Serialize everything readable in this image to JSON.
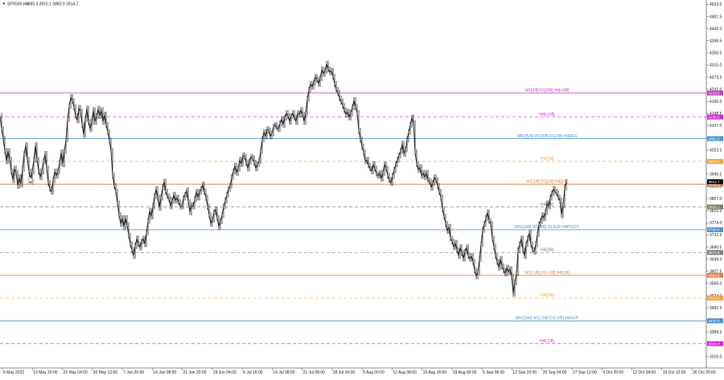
{
  "chart_data": {
    "type": "candlestick",
    "symbol": "SPX500,H4",
    "ohlc_header": "3885.3 3915.1 3883.9 3914.7",
    "ylim": [
      3276,
      4538
    ],
    "y_ticks": [
      4523.0,
      4481.5,
      4440.0,
      4398.5,
      4356.5,
      4315.0,
      4273.5,
      4232.0,
      4190.0,
      4148.5,
      4107.0,
      4065.5,
      4023.5,
      3982.0,
      3940.5,
      3899.0,
      3857.0,
      3815.5,
      3774.0,
      3732.5,
      3690.5,
      3649.0,
      3607.5,
      3566.0,
      3524.0,
      3482.5,
      3441.0,
      3399.5,
      3357.5,
      3316.0
    ],
    "x_ticks": [
      "6 May 2022",
      "13 May 20:00",
      "23 May 04:00",
      "30 May 12:00",
      "7 Jun 20:00",
      "14 Jun 08:00",
      "21 Jun 20:00",
      "29 Jun 04:00",
      "6 Jul 16:00",
      "14 Jul 08:00",
      "21 Jul 08:00",
      "28 Jul 16:00",
      "5 Aug 00:00",
      "12 Aug 08:00",
      "19 Aug 16:00",
      "29 Aug 00:00",
      "5 Sep 08:00",
      "12 Sep 20:00",
      "20 Sep 04:00",
      "27 Sep 12:00",
      "4 Oct 20:00",
      "12 Oct 04:00",
      "19 Oct 12:00",
      "26 Oct 20:00"
    ],
    "price_path": [
      [
        0,
        4140
      ],
      [
        2,
        4095
      ],
      [
        4,
        4062
      ],
      [
        6,
        4020
      ],
      [
        8,
        3985
      ],
      [
        10,
        4020
      ],
      [
        12,
        3990
      ],
      [
        14,
        3950
      ],
      [
        16,
        3920
      ],
      [
        18,
        3960
      ],
      [
        20,
        3945
      ],
      [
        22,
        3900
      ],
      [
        24,
        3930
      ],
      [
        26,
        3905
      ],
      [
        28,
        3960
      ],
      [
        30,
        4010
      ],
      [
        32,
        4040
      ],
      [
        34,
        3990
      ],
      [
        36,
        3950
      ],
      [
        38,
        3920
      ],
      [
        40,
        3950
      ],
      [
        42,
        3990
      ],
      [
        44,
        4040
      ],
      [
        46,
        3990
      ],
      [
        48,
        3950
      ],
      [
        50,
        3930
      ],
      [
        52,
        3950
      ],
      [
        54,
        3985
      ],
      [
        56,
        4010
      ],
      [
        58,
        3960
      ],
      [
        60,
        3910
      ],
      [
        62,
        3890
      ],
      [
        64,
        3880
      ],
      [
        66,
        3920
      ],
      [
        68,
        3950
      ],
      [
        70,
        3935
      ],
      [
        72,
        3950
      ],
      [
        74,
        3980
      ],
      [
        76,
        4015
      ],
      [
        78,
        3975
      ],
      [
        80,
        4020
      ],
      [
        82,
        4060
      ],
      [
        84,
        4130
      ],
      [
        86,
        4175
      ],
      [
        88,
        4205
      ],
      [
        90,
        4192
      ],
      [
        92,
        4170
      ],
      [
        94,
        4140
      ],
      [
        96,
        4125
      ],
      [
        98,
        4168
      ],
      [
        100,
        4155
      ],
      [
        102,
        4110
      ],
      [
        104,
        4075
      ],
      [
        106,
        4130
      ],
      [
        108,
        4165
      ],
      [
        110,
        4120
      ],
      [
        112,
        4095
      ],
      [
        114,
        4120
      ],
      [
        116,
        4160
      ],
      [
        118,
        4120
      ],
      [
        120,
        4140
      ],
      [
        122,
        4165
      ],
      [
        124,
        4140
      ],
      [
        126,
        4160
      ],
      [
        128,
        4120
      ],
      [
        130,
        4145
      ],
      [
        132,
        4110
      ],
      [
        134,
        4085
      ],
      [
        136,
        4055
      ],
      [
        138,
        4020
      ],
      [
        140,
        3935
      ],
      [
        142,
        3900
      ],
      [
        144,
        3880
      ],
      [
        146,
        3840
      ],
      [
        148,
        3800
      ],
      [
        150,
        3770
      ],
      [
        152,
        3790
      ],
      [
        154,
        3760
      ],
      [
        156,
        3790
      ],
      [
        158,
        3765
      ],
      [
        160,
        3730
      ],
      [
        162,
        3700
      ],
      [
        164,
        3680
      ],
      [
        166,
        3660
      ],
      [
        168,
        3695
      ],
      [
        170,
        3720
      ],
      [
        172,
        3700
      ],
      [
        174,
        3690
      ],
      [
        176,
        3710
      ],
      [
        178,
        3720
      ],
      [
        180,
        3700
      ],
      [
        182,
        3740
      ],
      [
        184,
        3780
      ],
      [
        186,
        3815
      ],
      [
        188,
        3795
      ],
      [
        190,
        3830
      ],
      [
        192,
        3865
      ],
      [
        194,
        3890
      ],
      [
        196,
        3860
      ],
      [
        198,
        3825
      ],
      [
        200,
        3860
      ],
      [
        202,
        3895
      ],
      [
        204,
        3915
      ],
      [
        206,
        3880
      ],
      [
        208,
        3865
      ],
      [
        210,
        3855
      ],
      [
        212,
        3830
      ],
      [
        214,
        3850
      ],
      [
        216,
        3870
      ],
      [
        218,
        3850
      ],
      [
        220,
        3860
      ],
      [
        222,
        3845
      ],
      [
        224,
        3830
      ],
      [
        226,
        3830
      ],
      [
        228,
        3860
      ],
      [
        230,
        3870
      ],
      [
        232,
        3885
      ],
      [
        234,
        3845
      ],
      [
        236,
        3810
      ],
      [
        238,
        3835
      ],
      [
        240,
        3830
      ],
      [
        242,
        3855
      ],
      [
        244,
        3880
      ],
      [
        246,
        3860
      ],
      [
        248,
        3880
      ],
      [
        250,
        3890
      ],
      [
        252,
        3905
      ],
      [
        254,
        3880
      ],
      [
        256,
        3860
      ],
      [
        258,
        3830
      ],
      [
        260,
        3800
      ],
      [
        262,
        3770
      ],
      [
        264,
        3785
      ],
      [
        266,
        3810
      ],
      [
        268,
        3820
      ],
      [
        270,
        3790
      ],
      [
        272,
        3760
      ],
      [
        274,
        3780
      ],
      [
        276,
        3800
      ],
      [
        278,
        3830
      ],
      [
        280,
        3850
      ],
      [
        282,
        3870
      ],
      [
        284,
        3890
      ],
      [
        286,
        3900
      ],
      [
        288,
        3930
      ],
      [
        290,
        3950
      ],
      [
        292,
        3970
      ],
      [
        294,
        3945
      ],
      [
        296,
        3960
      ],
      [
        298,
        3990
      ],
      [
        300,
        3975
      ],
      [
        302,
        4005
      ],
      [
        304,
        4000
      ],
      [
        306,
        3980
      ],
      [
        308,
        3960
      ],
      [
        310,
        3985
      ],
      [
        312,
        4000
      ],
      [
        314,
        3995
      ],
      [
        316,
        3980
      ],
      [
        318,
        3960
      ],
      [
        320,
        3975
      ],
      [
        322,
        3985
      ],
      [
        324,
        4020
      ],
      [
        326,
        4060
      ],
      [
        328,
        4085
      ],
      [
        330,
        4070
      ],
      [
        332,
        4095
      ],
      [
        334,
        4090
      ],
      [
        336,
        4070
      ],
      [
        338,
        4080
      ],
      [
        340,
        4105
      ],
      [
        342,
        4110
      ],
      [
        344,
        4100
      ],
      [
        346,
        4095
      ],
      [
        348,
        4115
      ],
      [
        350,
        4130
      ],
      [
        352,
        4110
      ],
      [
        354,
        4135
      ],
      [
        356,
        4150
      ],
      [
        358,
        4140
      ],
      [
        360,
        4120
      ],
      [
        362,
        4140
      ],
      [
        364,
        4150
      ],
      [
        366,
        4135
      ],
      [
        368,
        4120
      ],
      [
        370,
        4150
      ],
      [
        372,
        4145
      ],
      [
        374,
        4160
      ],
      [
        376,
        4145
      ],
      [
        378,
        4120
      ],
      [
        380,
        4150
      ],
      [
        382,
        4200
      ],
      [
        384,
        4230
      ],
      [
        386,
        4250
      ],
      [
        388,
        4240
      ],
      [
        390,
        4255
      ],
      [
        392,
        4275
      ],
      [
        394,
        4265
      ],
      [
        396,
        4250
      ],
      [
        398,
        4270
      ],
      [
        400,
        4300
      ],
      [
        402,
        4285
      ],
      [
        404,
        4295
      ],
      [
        406,
        4320
      ],
      [
        408,
        4300
      ],
      [
        410,
        4290
      ],
      [
        412,
        4295
      ],
      [
        414,
        4275
      ],
      [
        416,
        4250
      ],
      [
        418,
        4230
      ],
      [
        420,
        4220
      ],
      [
        422,
        4200
      ],
      [
        424,
        4190
      ],
      [
        426,
        4175
      ],
      [
        428,
        4160
      ],
      [
        430,
        4145
      ],
      [
        432,
        4155
      ],
      [
        434,
        4135
      ],
      [
        436,
        4150
      ],
      [
        438,
        4170
      ],
      [
        440,
        4195
      ],
      [
        442,
        4170
      ],
      [
        444,
        4150
      ],
      [
        446,
        4090
      ],
      [
        448,
        4060
      ],
      [
        450,
        4035
      ],
      [
        452,
        4015
      ],
      [
        454,
        3985
      ],
      [
        456,
        3990
      ],
      [
        458,
        3970
      ],
      [
        460,
        3960
      ],
      [
        462,
        3950
      ],
      [
        464,
        3975
      ],
      [
        466,
        3960
      ],
      [
        468,
        3940
      ],
      [
        470,
        3935
      ],
      [
        472,
        3945
      ],
      [
        474,
        3925
      ],
      [
        476,
        3945
      ],
      [
        478,
        3975
      ],
      [
        480,
        3960
      ],
      [
        482,
        3935
      ],
      [
        484,
        3920
      ],
      [
        486,
        3910
      ],
      [
        488,
        3935
      ],
      [
        490,
        3955
      ],
      [
        492,
        3975
      ],
      [
        494,
        3990
      ],
      [
        496,
        4005
      ],
      [
        498,
        4020
      ],
      [
        500,
        4045
      ],
      [
        502,
        4010
      ],
      [
        504,
        4025
      ],
      [
        506,
        4060
      ],
      [
        508,
        4085
      ],
      [
        510,
        4110
      ],
      [
        512,
        4135
      ],
      [
        514,
        4115
      ],
      [
        516,
        4015
      ],
      [
        518,
        3975
      ],
      [
        520,
        3955
      ],
      [
        522,
        3965
      ],
      [
        524,
        3935
      ],
      [
        526,
        3945
      ],
      [
        528,
        3930
      ],
      [
        530,
        3945
      ],
      [
        532,
        3920
      ],
      [
        534,
        3915
      ],
      [
        536,
        3895
      ],
      [
        538,
        3910
      ],
      [
        540,
        3930
      ],
      [
        542,
        3920
      ],
      [
        544,
        3900
      ],
      [
        546,
        3880
      ],
      [
        548,
        3860
      ],
      [
        550,
        3820
      ],
      [
        552,
        3795
      ],
      [
        554,
        3770
      ],
      [
        556,
        3745
      ],
      [
        558,
        3760
      ],
      [
        560,
        3720
      ],
      [
        562,
        3710
      ],
      [
        564,
        3690
      ],
      [
        566,
        3705
      ],
      [
        568,
        3680
      ],
      [
        570,
        3660
      ],
      [
        572,
        3690
      ],
      [
        574,
        3670
      ],
      [
        576,
        3650
      ],
      [
        578,
        3675
      ],
      [
        580,
        3690
      ],
      [
        582,
        3660
      ],
      [
        584,
        3650
      ],
      [
        586,
        3660
      ],
      [
        588,
        3640
      ],
      [
        590,
        3610
      ],
      [
        592,
        3590
      ],
      [
        594,
        3605
      ],
      [
        596,
        3650
      ],
      [
        598,
        3700
      ],
      [
        600,
        3750
      ],
      [
        602,
        3770
      ],
      [
        604,
        3790
      ],
      [
        606,
        3810
      ],
      [
        608,
        3780
      ],
      [
        610,
        3770
      ],
      [
        612,
        3720
      ],
      [
        614,
        3690
      ],
      [
        616,
        3660
      ],
      [
        618,
        3640
      ],
      [
        620,
        3620
      ],
      [
        622,
        3650
      ],
      [
        624,
        3625
      ],
      [
        626,
        3610
      ],
      [
        628,
        3600
      ],
      [
        630,
        3620
      ],
      [
        632,
        3605
      ],
      [
        634,
        3615
      ],
      [
        636,
        3590
      ],
      [
        638,
        3530
      ],
      [
        640,
        3570
      ],
      [
        642,
        3600
      ],
      [
        644,
        3680
      ],
      [
        646,
        3700
      ],
      [
        648,
        3720
      ],
      [
        650,
        3680
      ],
      [
        652,
        3660
      ],
      [
        654,
        3700
      ],
      [
        656,
        3720
      ],
      [
        658,
        3740
      ],
      [
        660,
        3700
      ],
      [
        662,
        3680
      ],
      [
        664,
        3675
      ],
      [
        666,
        3700
      ],
      [
        668,
        3735
      ],
      [
        670,
        3770
      ],
      [
        672,
        3780
      ],
      [
        674,
        3800
      ],
      [
        676,
        3790
      ],
      [
        678,
        3810
      ],
      [
        680,
        3840
      ],
      [
        682,
        3830
      ],
      [
        684,
        3860
      ],
      [
        686,
        3875
      ],
      [
        688,
        3890
      ],
      [
        690,
        3880
      ],
      [
        692,
        3875
      ],
      [
        694,
        3860
      ],
      [
        696,
        3850
      ],
      [
        698,
        3800
      ],
      [
        700,
        3835
      ],
      [
        702,
        3895
      ],
      [
        704,
        3914.7
      ]
    ],
    "price_level_labels": [
      "4523.0"
    ],
    "levels": [
      {
        "label": "W1[3/8] D1[3/8] H4[+2/8]",
        "price": 4219.0,
        "tag": "4219.0",
        "color": "#c040c0",
        "style": "solid"
      },
      {
        "label": "H4[+1/8]",
        "price": 4136.5,
        "tag": "4136.5",
        "color": "#e020e0",
        "style": "dashed"
      },
      {
        "label": "MN1[5/8] W1[2/8] D1[2/8] H4RES",
        "price": 4062.5,
        "tag": "4062.5",
        "color": "#4a90d9",
        "style": "solid"
      },
      {
        "label": "H4[7/8]",
        "price": 3984.4,
        "tag": "3984.4",
        "color": "#f0a040",
        "style": "dashed"
      },
      {
        "label": "W1[1/8] D1[1/8] H4[6/8]",
        "price": 3906.3,
        "tag": "3906.3",
        "color": "#e08040",
        "style": "solid"
      },
      {
        "label": "H4[5/8]",
        "price": 3828.1,
        "tag": "3828.1",
        "color": "#808060",
        "style": "dashed"
      },
      {
        "label": "MN1[4/8] W1[0/8] D1SUP H4PIVOT",
        "price": 3750.0,
        "tag": "3750.0",
        "color": "#4a90d9",
        "style": "solid"
      },
      {
        "label": "H4[3/8]",
        "price": 3671.9,
        "tag": "3671.9",
        "color": "#808080",
        "style": "dashed"
      },
      {
        "label": "W1[-1/8] D1[-1/8] H4[2/8]",
        "price": 3593.8,
        "tag": "3593.8",
        "color": "#e08040",
        "style": "solid"
      },
      {
        "label": "H4[1/8]",
        "price": 3515.6,
        "tag": "3515.6",
        "color": "#f0a040",
        "style": "dashed"
      },
      {
        "label": "MN1[3/8] W1[-2/8] D1[-2/8] H4SUP",
        "price": 3437.5,
        "tag": "3437.5",
        "color": "#4a90d9",
        "style": "solid"
      },
      {
        "label": "H4[-1/8]",
        "price": 3359.4,
        "tag": "3359.4",
        "color": "#e020e0",
        "style": "dashed"
      }
    ],
    "current_price": {
      "value": 3914.7,
      "tag": "3914.7",
      "color": "#000000"
    },
    "colors": {
      "candle": "#222222",
      "grid": "none",
      "axis": "#666666"
    }
  }
}
